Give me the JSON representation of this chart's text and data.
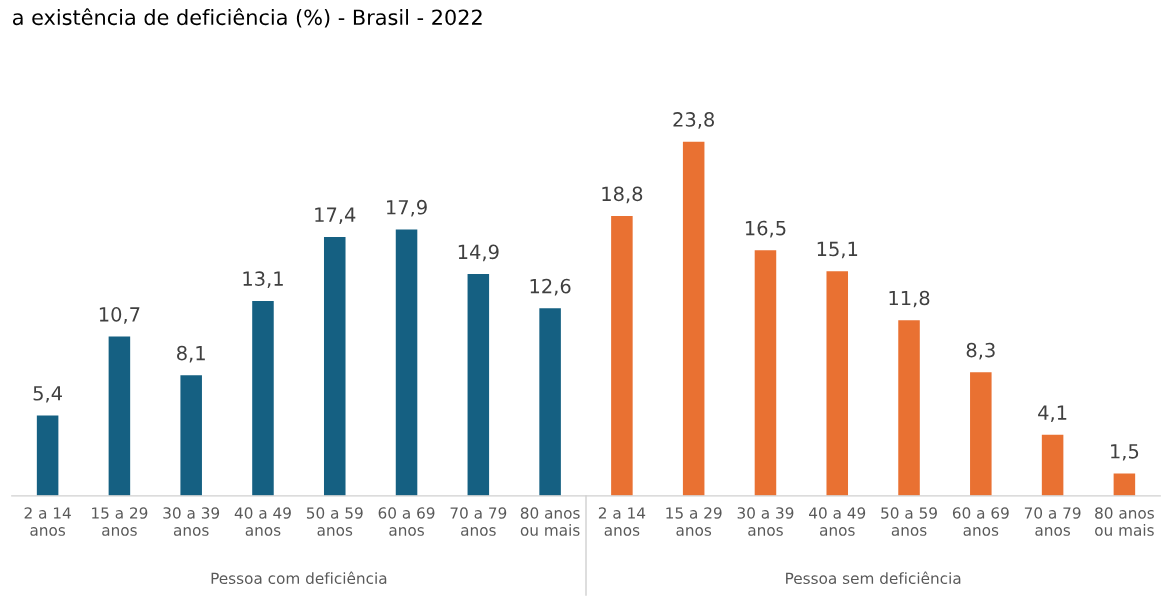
{
  "chart_data": {
    "type": "bar",
    "title": "a existência de deficiência (%) - Brasil - 2022",
    "categories": [
      "2 a 14\nanos",
      "15 a 29\nanos",
      "30 a 39\nanos",
      "40 a 49\nanos",
      "50 a 59\nanos",
      "60 a 69\nanos",
      "70 a 79\nanos",
      "80 anos\nou mais",
      "2 a 14\nanos",
      "15 a 29\nanos",
      "30 a 39\nanos",
      "40 a 49\nanos",
      "50 a 59\nanos",
      "60 a 69\nanos",
      "70 a 79\nanos",
      "80 anos\nou mais"
    ],
    "values": [
      5.4,
      10.7,
      8.1,
      13.1,
      17.4,
      17.9,
      14.9,
      12.6,
      18.8,
      23.8,
      16.5,
      15.1,
      11.8,
      8.3,
      4.1,
      1.5
    ],
    "colors": [
      "#156082",
      "#156082",
      "#156082",
      "#156082",
      "#156082",
      "#156082",
      "#156082",
      "#156082",
      "#e97132",
      "#e97132",
      "#e97132",
      "#e97132",
      "#e97132",
      "#e97132",
      "#e97132",
      "#e97132"
    ],
    "value_labels": [
      "5,4",
      "10,7",
      "8,1",
      "13,1",
      "17,4",
      "17,9",
      "14,9",
      "12,6",
      "18,8",
      "23,8",
      "16,5",
      "15,1",
      "11,8",
      "8,3",
      "4,1",
      "1,5"
    ],
    "annotations": [
      "Pessoa com deficiência",
      "Pessoa sem deficiência"
    ],
    "grid": false,
    "legend": false
  }
}
